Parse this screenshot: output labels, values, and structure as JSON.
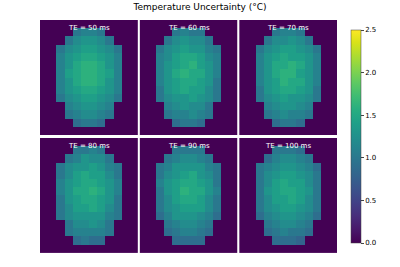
{
  "chart_data": {
    "type": "heatmap",
    "title": "Temperature Uncertainty (°C)",
    "color": "Viridis",
    "tick_labels": false,
    "zlim": [
      0,
      2.5
    ],
    "zticks": [
      {
        "value": 0,
        "label": "0.0"
      },
      0.5,
      {
        "value": 1,
        "label": "1.0"
      },
      1.5,
      {
        "value": 2,
        "label": "2.0"
      },
      2.5
    ],
    "panels": [
      {
        "label": "TE = 50 ms",
        "cells": [
          [
            0,
            0,
            0,
            0,
            0,
            0,
            0,
            0,
            0,
            0,
            0,
            0
          ],
          [
            0,
            0,
            0,
            0,
            1.0,
            1.1,
            1.1,
            1.0,
            0,
            0,
            0,
            0
          ],
          [
            0,
            0,
            0,
            1.0,
            1.2,
            1.3,
            1.3,
            1.2,
            1.0,
            0,
            0,
            0
          ],
          [
            0,
            0,
            1.0,
            1.2,
            1.3,
            1.4,
            1.4,
            1.3,
            1.2,
            1.0,
            0,
            0
          ],
          [
            0,
            0,
            1.1,
            1.3,
            1.4,
            1.5,
            1.5,
            1.4,
            1.3,
            1.1,
            0,
            0
          ],
          [
            0,
            0,
            1.1,
            1.3,
            1.5,
            1.6,
            1.6,
            1.5,
            1.3,
            1.1,
            0,
            0
          ],
          [
            0,
            0,
            1.1,
            1.4,
            1.5,
            1.6,
            1.6,
            1.5,
            1.4,
            1.1,
            0,
            0
          ],
          [
            0,
            0,
            1.1,
            1.3,
            1.5,
            1.6,
            1.6,
            1.5,
            1.3,
            1.1,
            0,
            0
          ],
          [
            0,
            0,
            1.1,
            1.3,
            1.4,
            1.5,
            1.5,
            1.4,
            1.3,
            1.1,
            0,
            0
          ],
          [
            0,
            0,
            1.0,
            1.2,
            1.3,
            1.4,
            1.4,
            1.3,
            1.2,
            1.0,
            0,
            0
          ],
          [
            0,
            0,
            0,
            1.1,
            1.2,
            1.3,
            1.3,
            1.2,
            1.1,
            0,
            0,
            0
          ],
          [
            0,
            0,
            0,
            1.0,
            1.1,
            1.2,
            1.2,
            1.1,
            1.0,
            0,
            0,
            0
          ],
          [
            0,
            0,
            0,
            0,
            0.9,
            1.0,
            1.0,
            0.9,
            0,
            0,
            0,
            0
          ],
          [
            0,
            0,
            0,
            0,
            0,
            0,
            0,
            0,
            0,
            0,
            0,
            0
          ]
        ]
      },
      {
        "label": "TE = 60 ms",
        "cells": [
          [
            0,
            0,
            0,
            0,
            0,
            0,
            0,
            0,
            0,
            0,
            0,
            0
          ],
          [
            0,
            0,
            0,
            0,
            1.0,
            1.1,
            1.0,
            1.0,
            0,
            0,
            0,
            0
          ],
          [
            0,
            0,
            0,
            1.0,
            1.2,
            1.3,
            1.2,
            1.2,
            1.0,
            0,
            0,
            0
          ],
          [
            0,
            0,
            1.0,
            1.2,
            1.3,
            1.4,
            1.3,
            1.3,
            1.1,
            1.0,
            0,
            0
          ],
          [
            0,
            0,
            1.1,
            1.2,
            1.4,
            1.5,
            1.5,
            1.4,
            1.2,
            1.1,
            0,
            0
          ],
          [
            0,
            0,
            1.1,
            1.3,
            1.4,
            1.5,
            1.6,
            1.4,
            1.3,
            1.1,
            0,
            0
          ],
          [
            0,
            0,
            1.1,
            1.3,
            1.5,
            1.6,
            1.5,
            1.5,
            1.3,
            1.1,
            0,
            0
          ],
          [
            0,
            0,
            1.1,
            1.3,
            1.4,
            1.5,
            1.5,
            1.4,
            1.3,
            1.0,
            0,
            0
          ],
          [
            0,
            0,
            1.0,
            1.3,
            1.4,
            1.5,
            1.4,
            1.4,
            1.2,
            1.0,
            0,
            0
          ],
          [
            0,
            0,
            1.0,
            1.2,
            1.3,
            1.3,
            1.4,
            1.3,
            1.2,
            1.0,
            0,
            0
          ],
          [
            0,
            0,
            0,
            1.1,
            1.2,
            1.3,
            1.2,
            1.2,
            1.0,
            0,
            0,
            0
          ],
          [
            0,
            0,
            0,
            1.0,
            1.1,
            1.1,
            1.2,
            1.1,
            1.0,
            0,
            0,
            0
          ],
          [
            0,
            0,
            0,
            0,
            0.9,
            1.0,
            1.0,
            0.9,
            0,
            0,
            0,
            0
          ],
          [
            0,
            0,
            0,
            0,
            0,
            0,
            0,
            0,
            0,
            0,
            0,
            0
          ]
        ]
      },
      {
        "label": "TE = 70 ms",
        "cells": [
          [
            0,
            0,
            0,
            0,
            0,
            0,
            0,
            0,
            0,
            0,
            0,
            0
          ],
          [
            0,
            0,
            0,
            0,
            1.0,
            1.1,
            1.1,
            1.0,
            0,
            0,
            0,
            0
          ],
          [
            0,
            0,
            0,
            1.0,
            1.2,
            1.2,
            1.3,
            1.2,
            1.0,
            0,
            0,
            0
          ],
          [
            0,
            0,
            1.0,
            1.2,
            1.3,
            1.4,
            1.4,
            1.3,
            1.2,
            1.0,
            0,
            0
          ],
          [
            0,
            0,
            1.1,
            1.3,
            1.4,
            1.5,
            1.4,
            1.4,
            1.3,
            1.1,
            0,
            0
          ],
          [
            0,
            0,
            1.1,
            1.3,
            1.5,
            1.5,
            1.6,
            1.5,
            1.3,
            1.1,
            0,
            0
          ],
          [
            0,
            0,
            1.1,
            1.3,
            1.5,
            1.6,
            1.6,
            1.4,
            1.3,
            1.1,
            0,
            0
          ],
          [
            0,
            0,
            1.1,
            1.3,
            1.4,
            1.6,
            1.5,
            1.5,
            1.3,
            1.1,
            0,
            0
          ],
          [
            0,
            0,
            1.0,
            1.3,
            1.4,
            1.5,
            1.5,
            1.4,
            1.3,
            1.0,
            0,
            0
          ],
          [
            0,
            0,
            1.0,
            1.2,
            1.3,
            1.4,
            1.3,
            1.3,
            1.2,
            1.0,
            0,
            0
          ],
          [
            0,
            0,
            0,
            1.1,
            1.2,
            1.3,
            1.3,
            1.2,
            1.1,
            0,
            0,
            0
          ],
          [
            0,
            0,
            0,
            1.0,
            1.1,
            1.2,
            1.1,
            1.1,
            1.0,
            0,
            0,
            0
          ],
          [
            0,
            0,
            0,
            0,
            0.9,
            1.0,
            1.0,
            0.9,
            0,
            0,
            0,
            0
          ],
          [
            0,
            0,
            0,
            0,
            0,
            0,
            0,
            0,
            0,
            0,
            0,
            0
          ]
        ]
      },
      {
        "label": "TE = 80 ms",
        "cells": [
          [
            0,
            0,
            0,
            0,
            0,
            0,
            0,
            0,
            0,
            0,
            0,
            0
          ],
          [
            0,
            0,
            0,
            0,
            1.0,
            1.0,
            1.1,
            1.0,
            0,
            0,
            0,
            0
          ],
          [
            0,
            0,
            0,
            1.0,
            1.1,
            1.3,
            1.2,
            1.2,
            1.0,
            0,
            0,
            0
          ],
          [
            0,
            0,
            1.0,
            1.2,
            1.3,
            1.3,
            1.4,
            1.3,
            1.1,
            1.0,
            0,
            0
          ],
          [
            0,
            0,
            1.0,
            1.2,
            1.4,
            1.5,
            1.4,
            1.4,
            1.2,
            1.0,
            0,
            0
          ],
          [
            0,
            0,
            1.1,
            1.3,
            1.4,
            1.5,
            1.5,
            1.4,
            1.3,
            1.1,
            0,
            0
          ],
          [
            0,
            0,
            1.1,
            1.3,
            1.5,
            1.5,
            1.6,
            1.5,
            1.3,
            1.1,
            0,
            0
          ],
          [
            0,
            0,
            1.0,
            1.3,
            1.4,
            1.5,
            1.5,
            1.4,
            1.3,
            1.0,
            0,
            0
          ],
          [
            0,
            0,
            1.0,
            1.2,
            1.4,
            1.4,
            1.5,
            1.4,
            1.2,
            1.0,
            0,
            0
          ],
          [
            0,
            0,
            1.0,
            1.2,
            1.3,
            1.3,
            1.3,
            1.3,
            1.1,
            1.0,
            0,
            0
          ],
          [
            0,
            0,
            0,
            1.0,
            1.2,
            1.2,
            1.3,
            1.2,
            1.0,
            0,
            0,
            0
          ],
          [
            0,
            0,
            0,
            1.0,
            1.1,
            1.1,
            1.1,
            1.1,
            1.0,
            0,
            0,
            0
          ],
          [
            0,
            0,
            0,
            0,
            0.9,
            1.0,
            0.9,
            0.9,
            0,
            0,
            0,
            0
          ],
          [
            0,
            0,
            0,
            0,
            0,
            0,
            0,
            0,
            0,
            0,
            0,
            0
          ]
        ]
      },
      {
        "label": "TE = 90 ms",
        "cells": [
          [
            0,
            0,
            0,
            0,
            0,
            0,
            0,
            0,
            0,
            0,
            0,
            0
          ],
          [
            0,
            0,
            0,
            0,
            1.0,
            1.0,
            1.0,
            1.0,
            0,
            0,
            0,
            0
          ],
          [
            0,
            0,
            0,
            1.0,
            1.1,
            1.2,
            1.2,
            1.1,
            1.0,
            0,
            0,
            0
          ],
          [
            0,
            0,
            1.0,
            1.1,
            1.3,
            1.3,
            1.3,
            1.3,
            1.1,
            1.0,
            0,
            0
          ],
          [
            0,
            0,
            1.0,
            1.2,
            1.3,
            1.4,
            1.5,
            1.3,
            1.2,
            1.0,
            0,
            0
          ],
          [
            0,
            0,
            1.1,
            1.3,
            1.4,
            1.5,
            1.5,
            1.4,
            1.3,
            1.0,
            0,
            0
          ],
          [
            0,
            0,
            1.0,
            1.3,
            1.4,
            1.6,
            1.5,
            1.5,
            1.3,
            1.1,
            0,
            0
          ],
          [
            0,
            0,
            1.0,
            1.2,
            1.4,
            1.5,
            1.5,
            1.4,
            1.2,
            1.0,
            0,
            0
          ],
          [
            0,
            0,
            1.0,
            1.2,
            1.3,
            1.4,
            1.4,
            1.4,
            1.2,
            1.0,
            0,
            0
          ],
          [
            0,
            0,
            0.9,
            1.1,
            1.3,
            1.3,
            1.3,
            1.2,
            1.1,
            0.9,
            0,
            0
          ],
          [
            0,
            0,
            0,
            1.0,
            1.1,
            1.2,
            1.2,
            1.1,
            1.0,
            0,
            0,
            0
          ],
          [
            0,
            0,
            0,
            0.9,
            1.0,
            1.1,
            1.1,
            1.0,
            0.9,
            0,
            0,
            0
          ],
          [
            0,
            0,
            0,
            0,
            0.9,
            0.9,
            0.9,
            0.9,
            0,
            0,
            0,
            0
          ],
          [
            0,
            0,
            0,
            0,
            0,
            0,
            0,
            0,
            0,
            0,
            0,
            0
          ]
        ]
      },
      {
        "label": "TE = 100 ms",
        "cells": [
          [
            0,
            0,
            0,
            0,
            0,
            0,
            0,
            0,
            0,
            0,
            0,
            0
          ],
          [
            0,
            0,
            0,
            0,
            1.0,
            1.0,
            1.0,
            0.9,
            0,
            0,
            0,
            0
          ],
          [
            0,
            0,
            0,
            0.9,
            1.1,
            1.2,
            1.2,
            1.1,
            1.0,
            0,
            0,
            0
          ],
          [
            0,
            0,
            1.0,
            1.1,
            1.2,
            1.3,
            1.3,
            1.2,
            1.1,
            0.9,
            0,
            0
          ],
          [
            0,
            0,
            1.0,
            1.2,
            1.3,
            1.4,
            1.4,
            1.3,
            1.2,
            1.0,
            0,
            0
          ],
          [
            0,
            0,
            1.0,
            1.2,
            1.4,
            1.5,
            1.4,
            1.4,
            1.2,
            1.0,
            0,
            0
          ],
          [
            0,
            0,
            1.0,
            1.3,
            1.4,
            1.5,
            1.5,
            1.4,
            1.3,
            1.0,
            0,
            0
          ],
          [
            0,
            0,
            1.0,
            1.2,
            1.4,
            1.4,
            1.5,
            1.4,
            1.2,
            1.0,
            0,
            0
          ],
          [
            0,
            0,
            1.0,
            1.2,
            1.3,
            1.4,
            1.4,
            1.3,
            1.2,
            1.0,
            0,
            0
          ],
          [
            0,
            0,
            0.9,
            1.1,
            1.2,
            1.3,
            1.3,
            1.2,
            1.1,
            0.9,
            0,
            0
          ],
          [
            0,
            0,
            0,
            1.0,
            1.1,
            1.2,
            1.2,
            1.1,
            1.0,
            0,
            0,
            0
          ],
          [
            0,
            0,
            0,
            0.9,
            1.0,
            1.1,
            1.0,
            1.0,
            0.9,
            0,
            0,
            0
          ],
          [
            0,
            0,
            0,
            0,
            0.9,
            0.9,
            0.9,
            0.8,
            0,
            0,
            0,
            0
          ],
          [
            0,
            0,
            0,
            0,
            0,
            0,
            0,
            0,
            0,
            0,
            0,
            0
          ]
        ]
      }
    ]
  }
}
